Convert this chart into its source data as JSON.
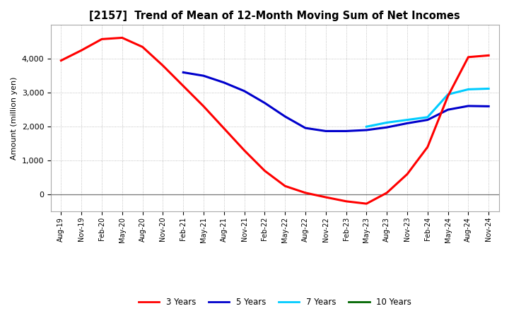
{
  "title": "[2157]  Trend of Mean of 12-Month Moving Sum of Net Incomes",
  "ylabel": "Amount (million yen)",
  "ylim": [
    -500,
    5000
  ],
  "yticks": [
    0,
    1000,
    2000,
    3000,
    4000
  ],
  "background_color": "#ffffff",
  "plot_bg_color": "#ffffff",
  "grid_color": "#b0b0b0",
  "colors": {
    "3y": "#ff0000",
    "5y": "#0000cc",
    "7y": "#00ccff",
    "10y": "#006600"
  },
  "legend_labels": [
    "3 Years",
    "5 Years",
    "7 Years",
    "10 Years"
  ],
  "x_labels": [
    "Aug-19",
    "Nov-19",
    "Feb-20",
    "May-20",
    "Aug-20",
    "Nov-20",
    "Feb-21",
    "May-21",
    "Aug-21",
    "Nov-21",
    "Feb-22",
    "May-22",
    "Aug-22",
    "Nov-22",
    "Feb-23",
    "May-23",
    "Aug-23",
    "Nov-23",
    "Feb-24",
    "May-24",
    "Aug-24",
    "Nov-24"
  ],
  "series_3y": [
    3950,
    4250,
    4580,
    4620,
    4350,
    3800,
    3200,
    2600,
    1950,
    1300,
    700,
    250,
    50,
    -80,
    -200,
    -270,
    50,
    600,
    1400,
    2900,
    4050,
    4100
  ],
  "series_5y": [
    null,
    null,
    null,
    null,
    null,
    null,
    3600,
    3500,
    3300,
    3050,
    2700,
    2300,
    1960,
    1870,
    1870,
    1900,
    1980,
    2100,
    2200,
    2500,
    2610,
    2600
  ],
  "series_7y": [
    null,
    null,
    null,
    null,
    null,
    null,
    null,
    null,
    null,
    null,
    null,
    null,
    null,
    null,
    null,
    2000,
    2120,
    2200,
    2280,
    2950,
    3100,
    3120
  ],
  "series_10y": [
    null,
    null,
    null,
    null,
    null,
    null,
    null,
    null,
    null,
    null,
    null,
    null,
    null,
    null,
    null,
    null,
    null,
    null,
    null,
    null,
    null,
    null
  ]
}
